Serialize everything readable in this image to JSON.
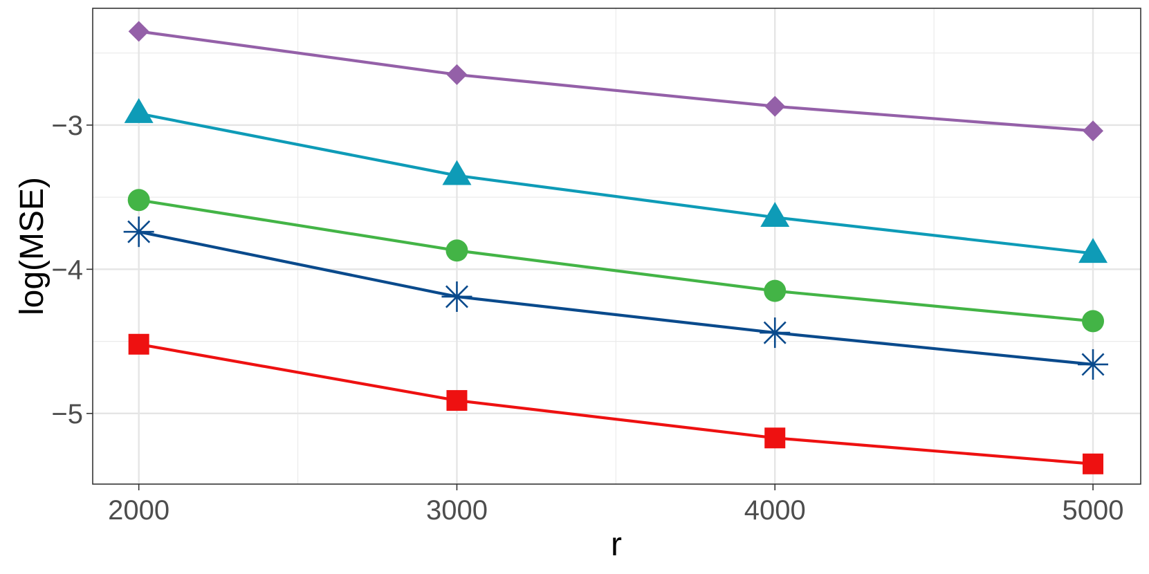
{
  "chart_data": {
    "type": "line",
    "title": "",
    "xlabel": "r",
    "ylabel": "log(MSE)",
    "x": [
      2000,
      3000,
      4000,
      5000
    ],
    "x_ticks": [
      2000,
      3000,
      4000,
      5000
    ],
    "x_tick_labels": [
      "2000",
      "3000",
      "4000",
      "5000"
    ],
    "y_ticks": [
      -5,
      -4,
      -3
    ],
    "y_tick_labels": [
      "−5",
      "−4",
      "−3"
    ],
    "xlim": [
      1855,
      5150
    ],
    "ylim": [
      -5.49,
      -2.19
    ],
    "grid": true,
    "legend": "none",
    "series": [
      {
        "marker": "diamond",
        "color": "#9460a8",
        "values": [
          -2.35,
          -2.65,
          -2.87,
          -3.04
        ]
      },
      {
        "marker": "triangle",
        "color": "#0e9bb7",
        "values": [
          -2.92,
          -3.35,
          -3.64,
          -3.89
        ]
      },
      {
        "marker": "circle",
        "color": "#43b446",
        "values": [
          -3.52,
          -3.87,
          -4.15,
          -4.36
        ]
      },
      {
        "marker": "asterisk",
        "color": "#0a4a8c",
        "values": [
          -3.74,
          -4.19,
          -4.44,
          -4.66
        ]
      },
      {
        "marker": "square",
        "color": "#ee1111",
        "values": [
          -4.52,
          -4.91,
          -5.17,
          -5.35
        ]
      }
    ]
  }
}
